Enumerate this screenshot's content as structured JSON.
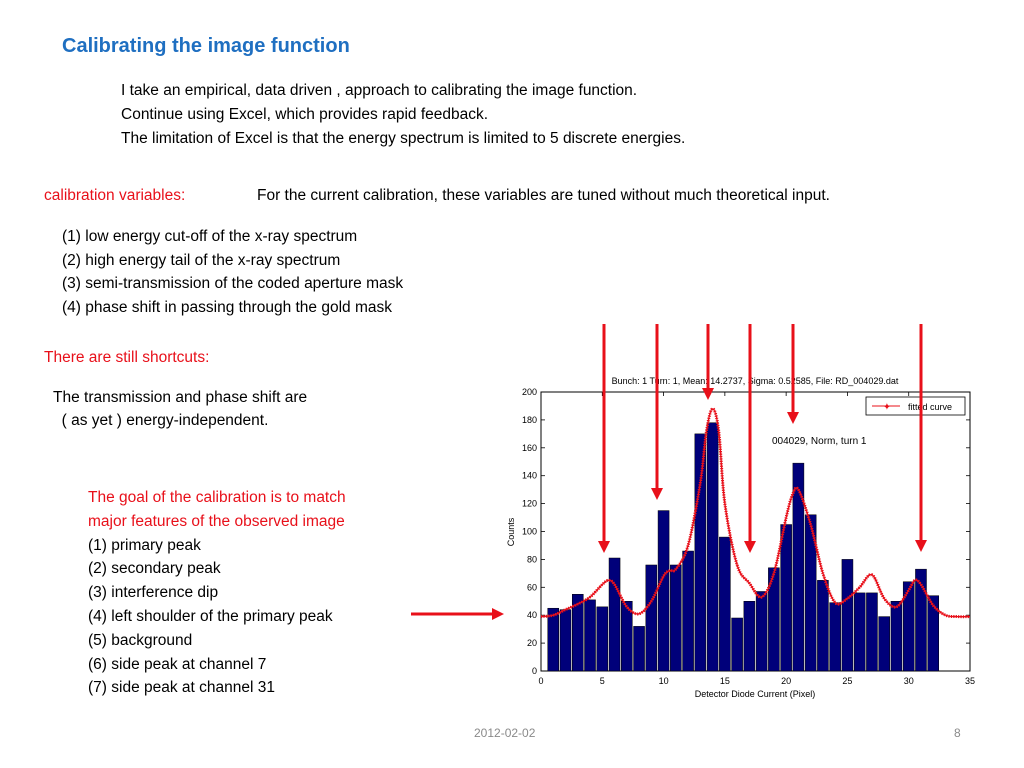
{
  "slide": {
    "title": "Calibrating the image function",
    "intro": [
      "I take an empirical,  data driven ,  approach to calibrating the image function.",
      "Continue using Excel, which provides rapid feedback.",
      "The limitation of Excel is that the energy spectrum is limited to 5 discrete energies."
    ],
    "calibration_label": "calibration variables:",
    "calibration_text": "For the current calibration, these  variables are tuned without much theoretical input.",
    "variables": [
      "(1) low energy cut-off of the x-ray spectrum",
      "(2) high energy tail of the x-ray spectrum",
      "(3) semi-transmission of the coded aperture mask",
      "(4) phase shift in passing through the gold mask"
    ],
    "shortcuts_label": "There are still shortcuts:",
    "transmission_text": [
      "The transmission and phase shift are",
      "  ( as yet ) energy-independent."
    ],
    "goal_red": [
      "The goal of the calibration is to match",
      "major features of the observed image"
    ],
    "goals": [
      "(1) primary peak",
      "(2) secondary peak",
      "(3) interference dip",
      "(4) left shoulder of the primary peak",
      "(5) background",
      "(6) side peak at channel 7",
      "(7) side peak at channel 31"
    ],
    "footer_date": "2012-02-02",
    "footer_page": "8",
    "colors": {
      "title": "#1f6fc1",
      "emphasis": "#e8101a",
      "bars": "#00007a",
      "fit": "#e8101a"
    }
  },
  "chart_data": {
    "type": "bar",
    "title": "Bunch: 1 Turn: 1,  Mean: 14.2737,  Sigma: 0.52585, File: RD_004029.dat",
    "xlabel": "Detector Diode Current (Pixel)",
    "ylabel": "Counts",
    "xlim": [
      0,
      35
    ],
    "ylim": [
      0,
      200
    ],
    "xticks": [
      0,
      5,
      10,
      15,
      20,
      25,
      30,
      35
    ],
    "yticks": [
      0,
      20,
      40,
      60,
      80,
      100,
      120,
      140,
      160,
      180,
      200
    ],
    "annotation": "004029, Norm, turn 1",
    "legend": {
      "label": "fitted curve",
      "placement": "top-right"
    },
    "series": [
      {
        "name": "",
        "kind": "bar",
        "x": [
          1,
          2,
          3,
          4,
          5,
          6,
          7,
          8,
          9,
          10,
          11,
          12,
          13,
          14,
          15,
          16,
          17,
          18,
          19,
          20,
          21,
          22,
          23,
          24,
          25,
          26,
          27,
          28,
          29,
          30,
          31,
          32
        ],
        "values": [
          45,
          44,
          55,
          51,
          46,
          81,
          50,
          32,
          76,
          115,
          76,
          86,
          170,
          178,
          96,
          38,
          50,
          57,
          74,
          105,
          149,
          112,
          65,
          49,
          80,
          56,
          56,
          39,
          50,
          64,
          73,
          54
        ]
      },
      {
        "name": "fitted curve",
        "kind": "line",
        "x": [
          0,
          1,
          2,
          3,
          4,
          5,
          5.5,
          6,
          7,
          8,
          9,
          10,
          10.5,
          11,
          12,
          13,
          13.5,
          14,
          14.5,
          15,
          16,
          17,
          18,
          19,
          20,
          20.5,
          21,
          22,
          23,
          24,
          25,
          26,
          27,
          28,
          29,
          30,
          30.5,
          31,
          32,
          33,
          34,
          35
        ],
        "values": [
          39,
          40,
          44,
          48,
          53,
          62,
          65,
          62,
          46,
          41,
          50,
          68,
          72,
          73,
          90,
          135,
          172,
          188,
          172,
          120,
          76,
          63,
          53,
          70,
          110,
          126,
          130,
          105,
          70,
          49,
          52,
          60,
          69,
          52,
          46,
          58,
          65,
          62,
          47,
          40,
          39,
          39
        ]
      }
    ]
  }
}
